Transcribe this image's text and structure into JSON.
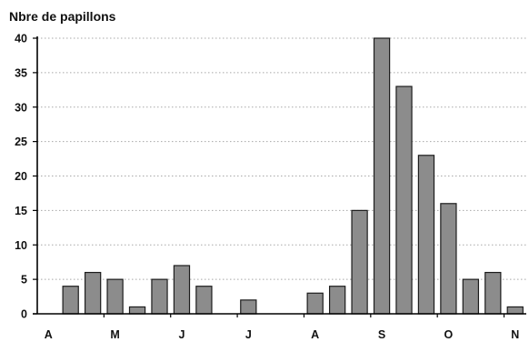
{
  "chart_data": {
    "type": "bar",
    "ylabel": "Nbre de papillons",
    "categories": [
      "A",
      "",
      "",
      "M",
      "",
      "",
      "J",
      "",
      "",
      "J",
      "",
      "",
      "A",
      "",
      "",
      "S",
      "",
      "",
      "O",
      "",
      "",
      "N"
    ],
    "values": [
      0,
      4,
      6,
      5,
      1,
      5,
      7,
      4,
      0,
      2,
      0,
      0,
      3,
      4,
      15,
      40,
      33,
      23,
      16,
      5,
      6,
      1
    ],
    "ylim": [
      0,
      40
    ],
    "yticks": [
      0,
      5,
      10,
      15,
      20,
      25,
      30,
      35,
      40
    ],
    "grid": true,
    "grid_style": "dotted horizontal",
    "legend": "none",
    "colors": {
      "bar_fill": "#8c8c8c",
      "bar_edge": "#1c1c1c",
      "grid": "#a8a8a8",
      "axis": "#000000",
      "text": "#111111"
    }
  }
}
